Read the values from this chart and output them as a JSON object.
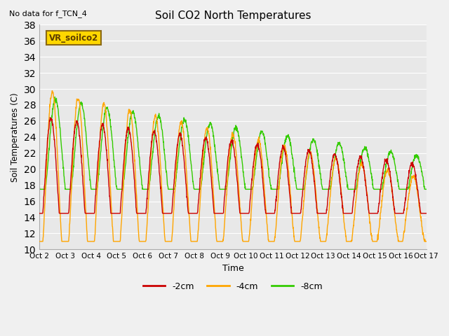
{
  "title": "Soil CO2 North Temperatures",
  "no_data_text": "No data for f_TCN_4",
  "legend_box_text": "VR_soilco2",
  "xlabel": "Time",
  "ylabel": "Soil Temperatures (C)",
  "ylim": [
    10,
    38
  ],
  "yticks": [
    10,
    12,
    14,
    16,
    18,
    20,
    22,
    24,
    26,
    28,
    30,
    32,
    34,
    36,
    38
  ],
  "xtick_labels": [
    "Oct 2",
    "Oct 3",
    "Oct 4",
    "Oct 5",
    "Oct 6",
    "Oct 7",
    "Oct 8",
    "Oct 9",
    "Oct 10",
    "Oct 11",
    "Oct 12",
    "Oct 13",
    "Oct 14",
    "Oct 15",
    "Oct 16",
    "Oct 17"
  ],
  "color_2cm": "#cc0000",
  "color_4cm": "#ffa500",
  "color_8cm": "#33cc00",
  "bg_color": "#e8e8e8",
  "fig_color": "#f0f0f0",
  "legend_box_color": "#ffd700",
  "legend_box_edge": "#8B6914",
  "days": 15,
  "pts_per_day": 120
}
